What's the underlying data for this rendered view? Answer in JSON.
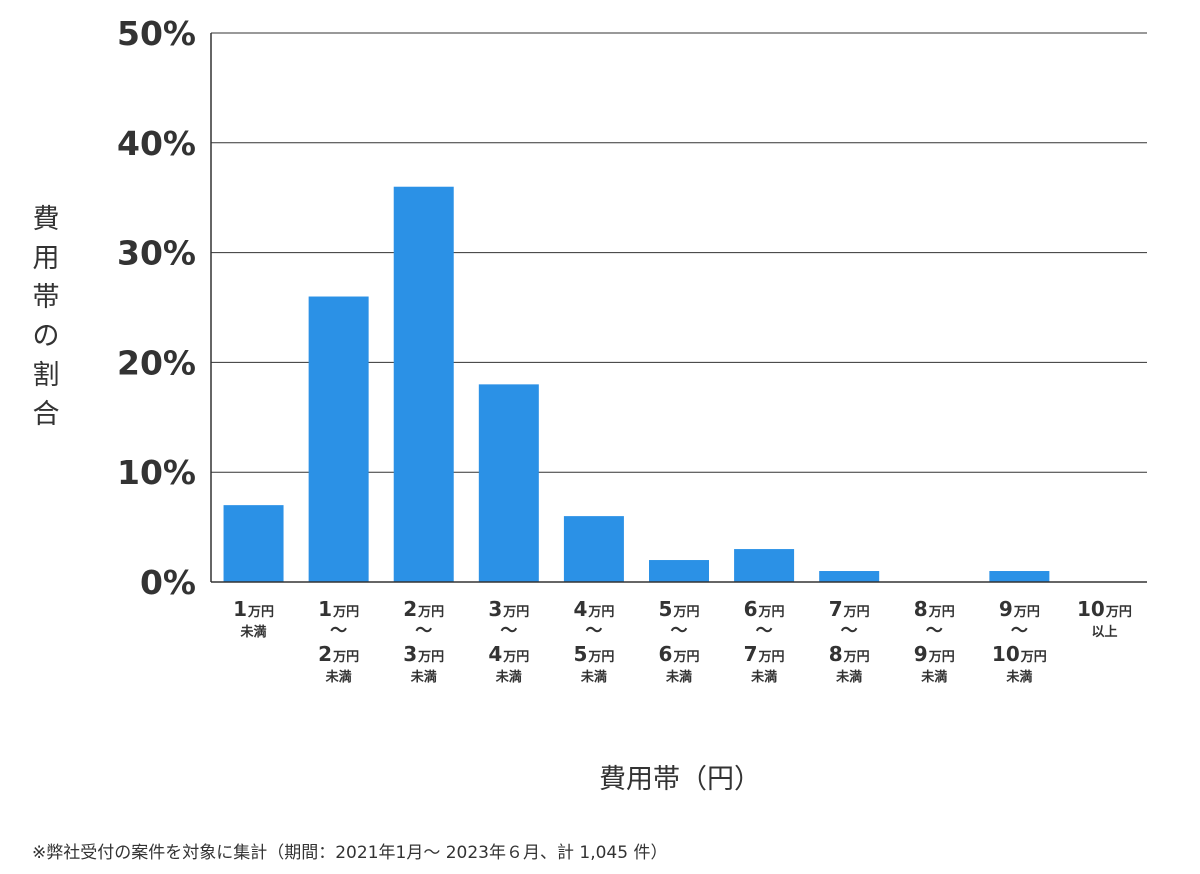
{
  "chart_data": {
    "type": "bar",
    "ylabel": "費用帯の割合",
    "xlabel": "費用帯（円）",
    "ylim": [
      0,
      50
    ],
    "y_ticks": [
      "0%",
      "10%",
      "20%",
      "30%",
      "40%",
      "50%"
    ],
    "grid": true,
    "bar_color": "#2b91e6",
    "categories": [
      {
        "lines": [
          "1万円",
          "未満"
        ]
      },
      {
        "lines": [
          "1万円",
          "〜",
          "2万円",
          "未満"
        ]
      },
      {
        "lines": [
          "2万円",
          "〜",
          "3万円",
          "未満"
        ]
      },
      {
        "lines": [
          "3万円",
          "〜",
          "4万円",
          "未満"
        ]
      },
      {
        "lines": [
          "4万円",
          "〜",
          "5万円",
          "未満"
        ]
      },
      {
        "lines": [
          "5万円",
          "〜",
          "6万円",
          "未満"
        ]
      },
      {
        "lines": [
          "6万円",
          "〜",
          "7万円",
          "未満"
        ]
      },
      {
        "lines": [
          "7万円",
          "〜",
          "8万円",
          "未満"
        ]
      },
      {
        "lines": [
          "8万円",
          "〜",
          "9万円",
          "未満"
        ]
      },
      {
        "lines": [
          "9万円",
          "〜",
          "10万円",
          "未満"
        ]
      },
      {
        "lines": [
          "10万円",
          "以上"
        ]
      }
    ],
    "values": [
      7,
      26,
      36,
      18,
      6,
      2,
      3,
      1,
      0,
      1,
      0
    ]
  },
  "footnote": "※弊社受付の案件を対象に集計（期間：2021年1月～ 2023年６月、計 1,045 件）"
}
